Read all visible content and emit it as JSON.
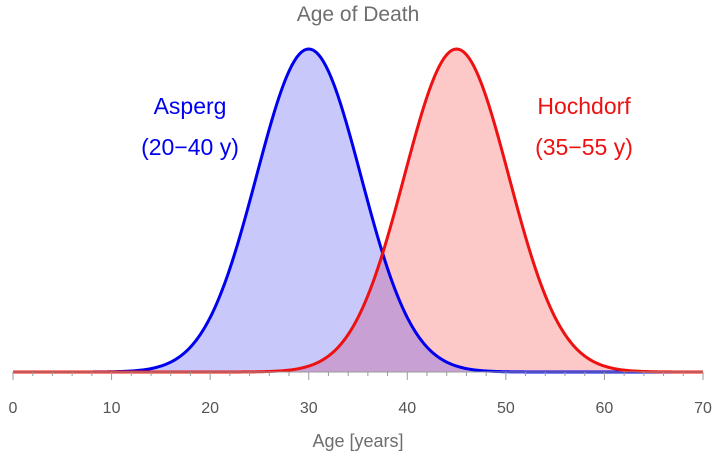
{
  "chart_data": {
    "type": "area",
    "title": "Age of Death",
    "xlabel": "Age [years]",
    "ylabel": "",
    "xlim": [
      0,
      70
    ],
    "x_ticks": [
      0,
      10,
      20,
      30,
      40,
      50,
      60,
      70
    ],
    "series": [
      {
        "name": "Asperg",
        "range_label": "(20−40 y)",
        "distribution": "normal",
        "mean": 30,
        "sd": 5.3,
        "peak_relative": 1.0,
        "color": "#0000ee",
        "fill": "#c8c8fa"
      },
      {
        "name": "Hochdorf",
        "range_label": "(35−55 y)",
        "distribution": "normal",
        "mean": 45,
        "sd": 5.3,
        "peak_relative": 1.0,
        "color": "#ee1111",
        "fill": "#fcc8c8"
      }
    ],
    "overlap_fill": "#c8a0d4",
    "grid": false,
    "legend": "none"
  }
}
